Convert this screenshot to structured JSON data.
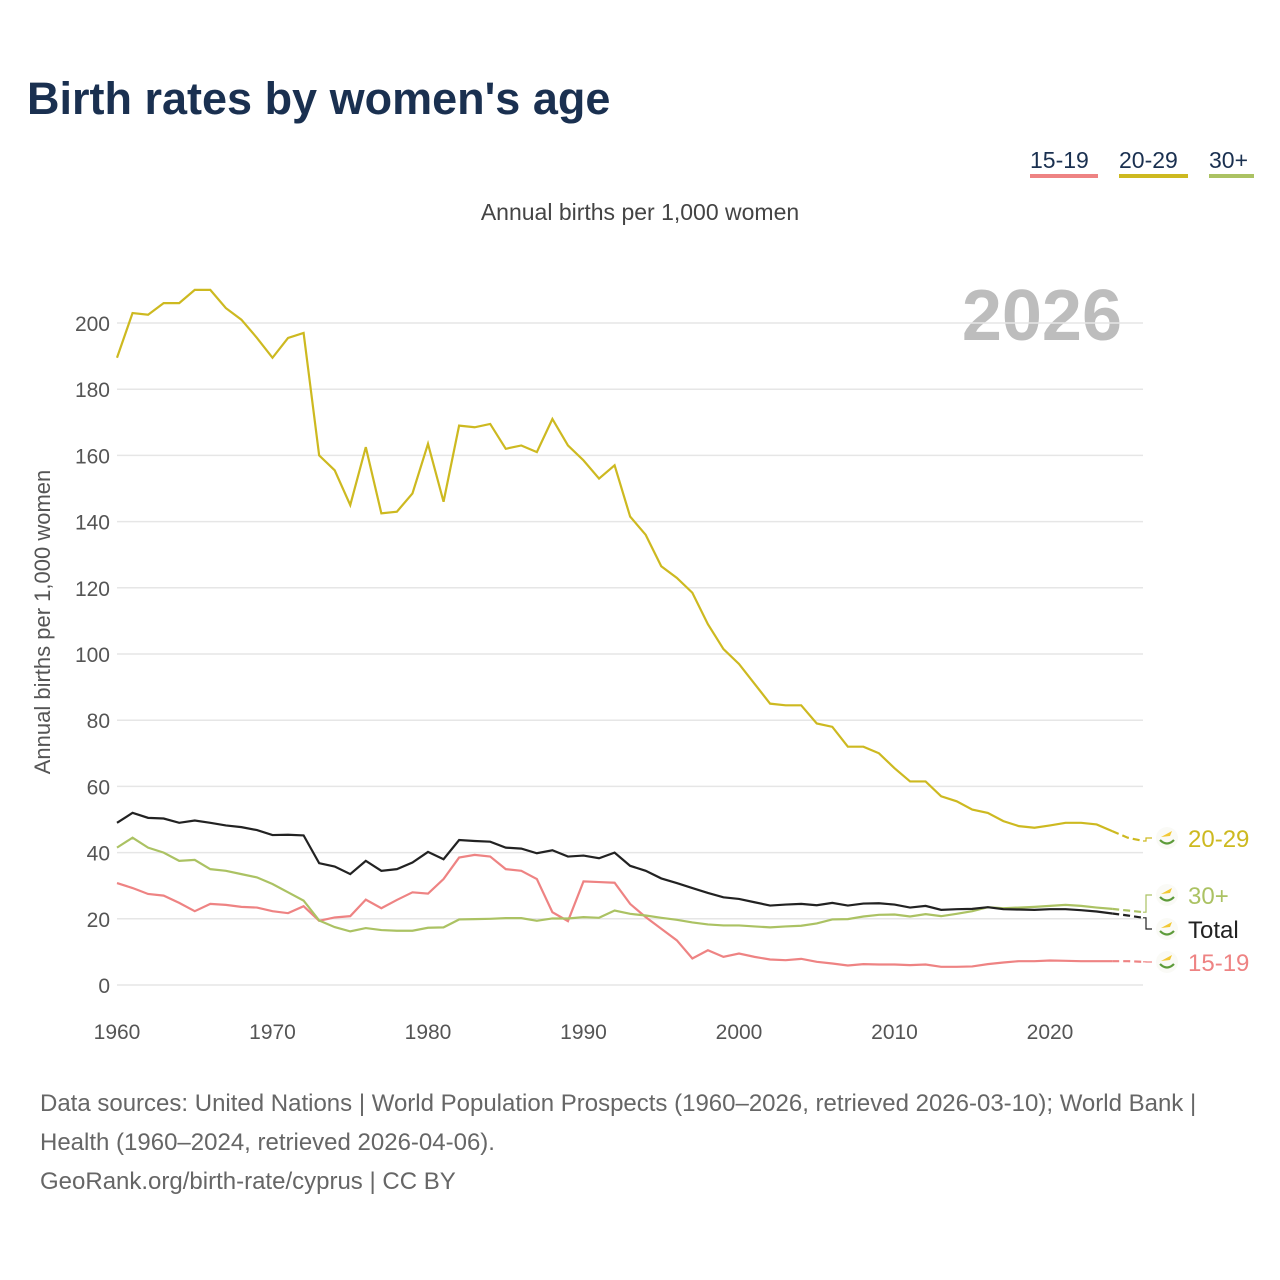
{
  "title": "Birth rates by women's age",
  "year_label": "2026",
  "footer": {
    "sources": "Data sources: United Nations | World Population Prospects (1960–2026, retrieved 2026-03-10); World Bank | Health (1960–2024, retrieved 2026-04-06).",
    "link": "GeoRank.org/birth-rate/cyprus | CC BY"
  },
  "chart_data": {
    "type": "line",
    "title": "Birth rates by women's age",
    "subtitle": "Annual births per 1,000 women",
    "xlabel": "",
    "ylabel": "Annual births per 1,000 women",
    "xlim": [
      1960,
      2026
    ],
    "ylim": [
      0,
      210
    ],
    "xticks": [
      1960,
      1970,
      1980,
      1990,
      2000,
      2010,
      2020
    ],
    "yticks": [
      0,
      20,
      40,
      60,
      80,
      100,
      120,
      140,
      160,
      180,
      200
    ],
    "grid": true,
    "legend_position": "top-right",
    "projected_from": 2024,
    "x_start": 1960,
    "series": [
      {
        "name": "15-19",
        "color": "#ee8383",
        "values": [
          30.8,
          29.3,
          27.5,
          27,
          24.8,
          22.3,
          24.5,
          24.2,
          23.6,
          23.4,
          22.3,
          21.7,
          23.8,
          19.4,
          20.4,
          20.8,
          25.8,
          23.2,
          25.7,
          28,
          27.6,
          32,
          38.5,
          39.3,
          38.8,
          35,
          34.5,
          32,
          22,
          19.3,
          31.3,
          31.1,
          30.9,
          24.5,
          20.5,
          17,
          13.5,
          8,
          10.5,
          8.5,
          9.5,
          8.5,
          7.7,
          7.5,
          7.9,
          7,
          6.5,
          5.9,
          6.3,
          6.2,
          6.2,
          6,
          6.2,
          5.5,
          5.5,
          5.6,
          6.3,
          6.8,
          7.2,
          7.2,
          7.4,
          7.3,
          7.2,
          7.2,
          7.2,
          7.2,
          7
        ]
      },
      {
        "name": "20-29",
        "color": "#cdb920",
        "values": [
          189.5,
          203,
          202.5,
          206,
          206,
          210,
          210,
          204.5,
          201,
          195.5,
          189.5,
          195.5,
          197,
          160,
          155.5,
          145,
          162.5,
          142.5,
          143,
          148.5,
          163.5,
          146,
          169,
          168.5,
          169.5,
          162,
          163,
          161,
          171,
          163,
          158.5,
          153,
          157,
          141.5,
          136,
          126.5,
          123,
          118.5,
          109,
          101.5,
          97,
          91,
          85,
          84.5,
          84.5,
          79,
          78,
          72,
          72,
          70,
          65.5,
          61.5,
          61.5,
          57,
          55.5,
          53,
          52,
          49.5,
          48,
          47.5,
          48.2,
          49,
          49,
          48.5,
          46.5,
          44.5,
          43.5
        ]
      },
      {
        "name": "30+",
        "color": "#abc263",
        "values": [
          41.5,
          44.5,
          41.5,
          40,
          37.5,
          37.8,
          35,
          34.5,
          33.5,
          32.5,
          30.5,
          28,
          25.5,
          19.5,
          17.5,
          16.2,
          17.2,
          16.6,
          16.4,
          16.4,
          17.3,
          17.4,
          19.8,
          19.9,
          20,
          20.2,
          20.2,
          19.4,
          20.1,
          20.1,
          20.5,
          20.3,
          22.5,
          21.5,
          21,
          20.3,
          19.7,
          18.9,
          18.3,
          18,
          18,
          17.7,
          17.4,
          17.7,
          17.9,
          18.6,
          19.8,
          19.9,
          20.7,
          21.2,
          21.3,
          20.7,
          21.4,
          20.8,
          21.5,
          22.3,
          23.5,
          23.2,
          23.4,
          23.6,
          23.9,
          24.2,
          23.9,
          23.4,
          23,
          22.5,
          22
        ]
      },
      {
        "name": "Total",
        "color": "#222222",
        "values": [
          49,
          52,
          50.5,
          50.3,
          49,
          49.7,
          49,
          48.2,
          47.7,
          46.8,
          45.3,
          45.4,
          45.2,
          36.8,
          35.8,
          33.5,
          37.5,
          34.5,
          35,
          37,
          40.2,
          38,
          43.8,
          43.5,
          43.3,
          41.5,
          41.2,
          39.8,
          40.7,
          38.8,
          39.1,
          38.3,
          40,
          36,
          34.5,
          32.2,
          30.8,
          29.3,
          27.8,
          26.5,
          26,
          25,
          24,
          24.3,
          24.5,
          24.1,
          24.8,
          24,
          24.6,
          24.7,
          24.3,
          23.4,
          23.9,
          22.7,
          22.9,
          23,
          23.5,
          22.9,
          22.8,
          22.7,
          22.9,
          22.9,
          22.6,
          22.2,
          21.6,
          21,
          20.3
        ]
      }
    ],
    "legend": [
      "15-19",
      "20-29",
      "30+"
    ],
    "end_labels": [
      "20-29",
      "30+",
      "Total",
      "15-19"
    ]
  }
}
